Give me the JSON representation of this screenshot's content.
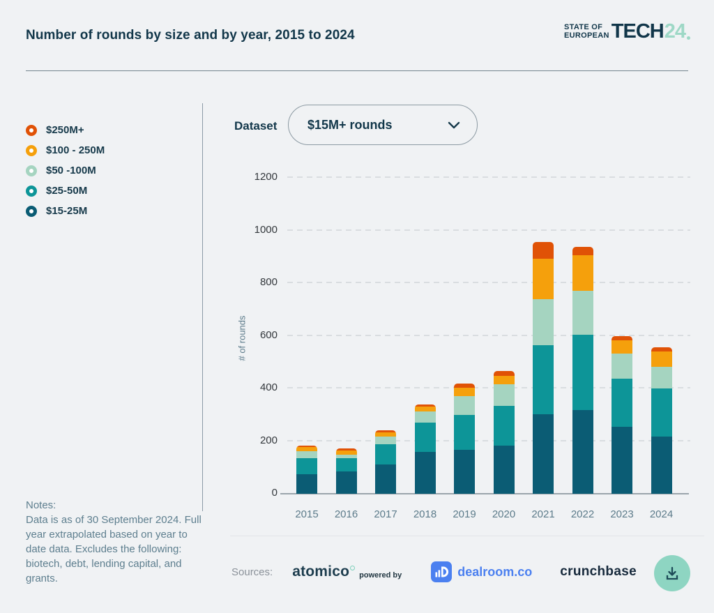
{
  "header": {
    "title": "Number of rounds by size and by year, 2015 to 2024",
    "logo": {
      "line1": "STATE OF",
      "line2": "EUROPEAN",
      "word": "TECH",
      "year": "24"
    }
  },
  "legend": {
    "items": [
      {
        "label": "$250M+",
        "color": "#e05206"
      },
      {
        "label": "$100 - 250M",
        "color": "#f5a00c"
      },
      {
        "label": "$50 -100M",
        "color": "#a5d4c0"
      },
      {
        "label": "$25-50M",
        "color": "#0d9598"
      },
      {
        "label": "$15-25M",
        "color": "#0b5c74"
      }
    ]
  },
  "dataset": {
    "label": "Dataset",
    "selected": "$15M+ rounds"
  },
  "notes": {
    "heading": "Notes:",
    "body": "Data is as of 30 September 2024. Full year extrapolated based on year to date data. Excludes the following: biotech, debt, lending capital, and grants."
  },
  "sources": {
    "label": "Sources:",
    "atomico": "atomico",
    "powered_by": "powered by",
    "dealroom": "dealroom.co",
    "crunchbase": "crunchbase"
  },
  "icons": {
    "dropdown": "chevron-down-icon",
    "download": "download-icon",
    "dealroom": "dealroom-logo-icon"
  },
  "colors": {
    "background": "#f0f2f4",
    "text_dark": "#113649",
    "text_muted": "#5d7e8e",
    "logo_mint": "#9ed8c6",
    "download_button": "#8ed5c2",
    "dealroom_blue": "#4b80f0"
  },
  "chart_data": {
    "type": "bar",
    "stacked": true,
    "title": "Number of rounds by size and by year, 2015 to 2024",
    "categories": [
      "2015",
      "2016",
      "2017",
      "2018",
      "2019",
      "2020",
      "2021",
      "2022",
      "2023",
      "2024"
    ],
    "series": [
      {
        "name": "$15-25M",
        "color": "#0b5c74",
        "values": [
          74,
          86,
          111,
          158,
          166,
          184,
          302,
          318,
          253,
          218
        ]
      },
      {
        "name": "$25-50M",
        "color": "#0d9598",
        "values": [
          61,
          50,
          78,
          112,
          134,
          149,
          262,
          287,
          184,
          182
        ]
      },
      {
        "name": "$50 -100M",
        "color": "#a5d4c0",
        "values": [
          26,
          13,
          27,
          42,
          72,
          84,
          176,
          167,
          95,
          82
        ]
      },
      {
        "name": "$100 - 250M",
        "color": "#f5a00c",
        "values": [
          17,
          16,
          17,
          19,
          31,
          32,
          152,
          135,
          50,
          58
        ]
      },
      {
        "name": "$250M+",
        "color": "#e05206",
        "values": [
          6,
          6,
          7,
          9,
          16,
          18,
          64,
          31,
          16,
          16
        ]
      }
    ],
    "totals": [
      184,
      171,
      240,
      340,
      419,
      467,
      956,
      938,
      598,
      556
    ],
    "xlabel": "",
    "ylabel": "# of rounds",
    "yticks": [
      0,
      200,
      400,
      600,
      800,
      1000,
      1200
    ],
    "ylim": [
      0,
      1200
    ],
    "grid": "dashed horizontal",
    "legend_position": "left"
  }
}
